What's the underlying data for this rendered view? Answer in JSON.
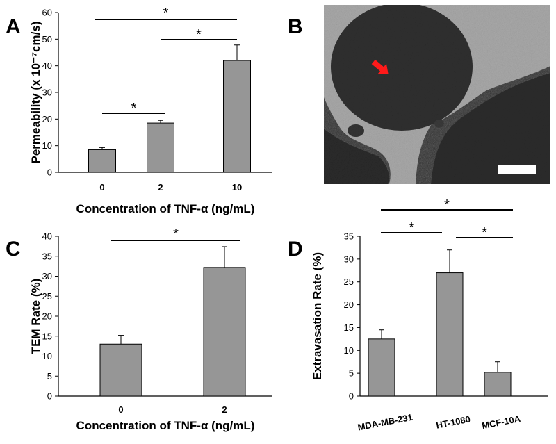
{
  "panels": {
    "A": {
      "letter": "A"
    },
    "B": {
      "letter": "B"
    },
    "C": {
      "letter": "C"
    },
    "D": {
      "letter": "D"
    }
  },
  "chart_data": [
    {
      "id": "A",
      "type": "bar",
      "categories": [
        "0",
        "2",
        "10"
      ],
      "values": [
        8.5,
        18.5,
        42
      ],
      "errors": [
        0.8,
        1.0,
        5.8
      ],
      "ylabel": "Permeability (x 10⁻⁷cm/s)",
      "xlabel": "Concentration of TNF-α  (ng/mL)",
      "ylim": [
        0,
        60
      ],
      "yticks": [
        0,
        10,
        20,
        30,
        40,
        50,
        60
      ],
      "bar_color": "#969696",
      "grid": false,
      "significance": [
        {
          "from": 0,
          "to": 1,
          "label": "*"
        },
        {
          "from": 1,
          "to": 2,
          "label": "*"
        },
        {
          "from": 0,
          "to": 2,
          "label": "*"
        }
      ]
    },
    {
      "id": "C",
      "type": "bar",
      "categories": [
        "0",
        "2"
      ],
      "values": [
        13,
        32.2
      ],
      "errors": [
        2.2,
        5.2
      ],
      "ylabel": "TEM Rate (%)",
      "xlabel": "Concentration of TNF-α  (ng/mL)",
      "ylim": [
        0,
        40
      ],
      "yticks": [
        0,
        5,
        10,
        15,
        20,
        25,
        30,
        35,
        40
      ],
      "bar_color": "#969696",
      "grid": false,
      "significance": [
        {
          "from": 0,
          "to": 1,
          "label": "*"
        }
      ]
    },
    {
      "id": "D",
      "type": "bar",
      "categories": [
        "MDA-MB-231",
        "HT-1080",
        "MCF-10A"
      ],
      "values": [
        12.5,
        27,
        5.2
      ],
      "errors": [
        2.0,
        5.0,
        2.3
      ],
      "ylabel": "Extravasation Rate (%)",
      "xlabel": "",
      "ylim": [
        0,
        35
      ],
      "yticks": [
        0,
        5,
        10,
        15,
        20,
        25,
        30,
        35
      ],
      "bar_color": "#969696",
      "grid": false,
      "significance": [
        {
          "from": 0,
          "to": 1,
          "label": "*"
        },
        {
          "from": 1,
          "to": 2,
          "label": "*"
        },
        {
          "from": 0,
          "to": 2,
          "label": "*"
        }
      ]
    }
  ],
  "micrograph": {
    "arrow_color": "#ff1a1a",
    "scale_bar_color": "#ffffff",
    "background": "#2e2e2e",
    "vessel_color": "#a8a8a8"
  }
}
